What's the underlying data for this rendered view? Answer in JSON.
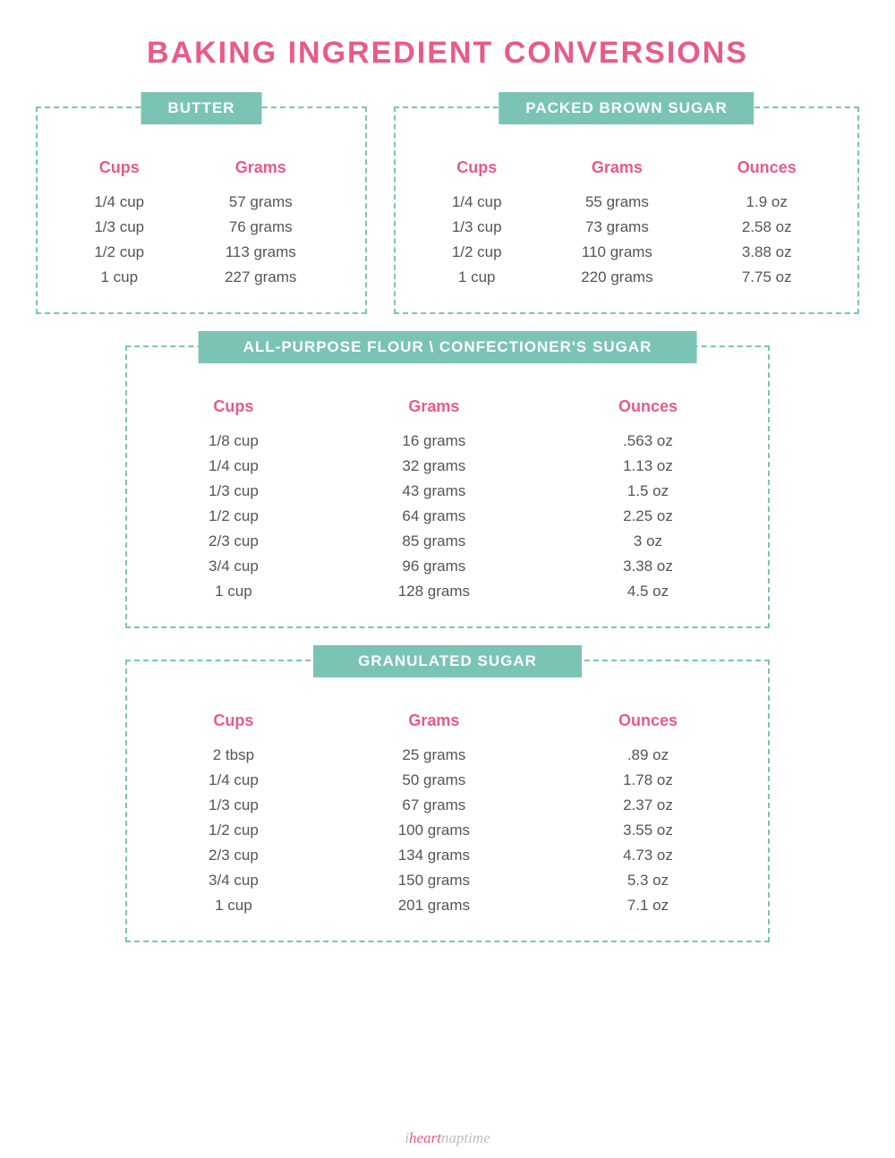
{
  "title": "BAKING INGREDIENT CONVERSIONS",
  "colors": {
    "accent_pink": "#e85a8a",
    "accent_teal": "#7bc4b5",
    "text_body": "#555555",
    "background": "#ffffff"
  },
  "butter": {
    "label": "BUTTER",
    "columns": [
      "Cups",
      "Grams"
    ],
    "rows": [
      [
        "1/4 cup",
        "57 grams"
      ],
      [
        "1/3 cup",
        "76 grams"
      ],
      [
        "1/2 cup",
        "113 grams"
      ],
      [
        "1 cup",
        "227 grams"
      ]
    ]
  },
  "brown_sugar": {
    "label": "PACKED BROWN SUGAR",
    "columns": [
      "Cups",
      "Grams",
      "Ounces"
    ],
    "rows": [
      [
        "1/4 cup",
        "55 grams",
        "1.9 oz"
      ],
      [
        "1/3 cup",
        "73 grams",
        "2.58 oz"
      ],
      [
        "1/2 cup",
        "110 grams",
        "3.88 oz"
      ],
      [
        "1 cup",
        "220 grams",
        "7.75 oz"
      ]
    ]
  },
  "flour": {
    "label": "ALL-PURPOSE FLOUR \\ CONFECTIONER'S SUGAR",
    "columns": [
      "Cups",
      "Grams",
      "Ounces"
    ],
    "rows": [
      [
        "1/8 cup",
        "16 grams",
        ".563 oz"
      ],
      [
        "1/4 cup",
        "32 grams",
        "1.13 oz"
      ],
      [
        "1/3 cup",
        "43 grams",
        "1.5 oz"
      ],
      [
        "1/2 cup",
        "64 grams",
        "2.25 oz"
      ],
      [
        "2/3 cup",
        "85 grams",
        "3 oz"
      ],
      [
        "3/4 cup",
        "96 grams",
        "3.38 oz"
      ],
      [
        "1 cup",
        "128 grams",
        "4.5 oz"
      ]
    ]
  },
  "gran_sugar": {
    "label": "GRANULATED SUGAR",
    "columns": [
      "Cups",
      "Grams",
      "Ounces"
    ],
    "rows": [
      [
        "2 tbsp",
        "25 grams",
        ".89 oz"
      ],
      [
        "1/4 cup",
        "50 grams",
        "1.78 oz"
      ],
      [
        "1/3 cup",
        "67 grams",
        "2.37 oz"
      ],
      [
        "1/2 cup",
        "100 grams",
        "3.55 oz"
      ],
      [
        "2/3 cup",
        "134 grams",
        "4.73 oz"
      ],
      [
        "3/4 cup",
        "150 grams",
        "5.3 oz"
      ],
      [
        "1 cup",
        "201 grams",
        "7.1 oz"
      ]
    ]
  },
  "footer": {
    "prefix": "i",
    "heart": "heart",
    "suffix": "naptime"
  }
}
